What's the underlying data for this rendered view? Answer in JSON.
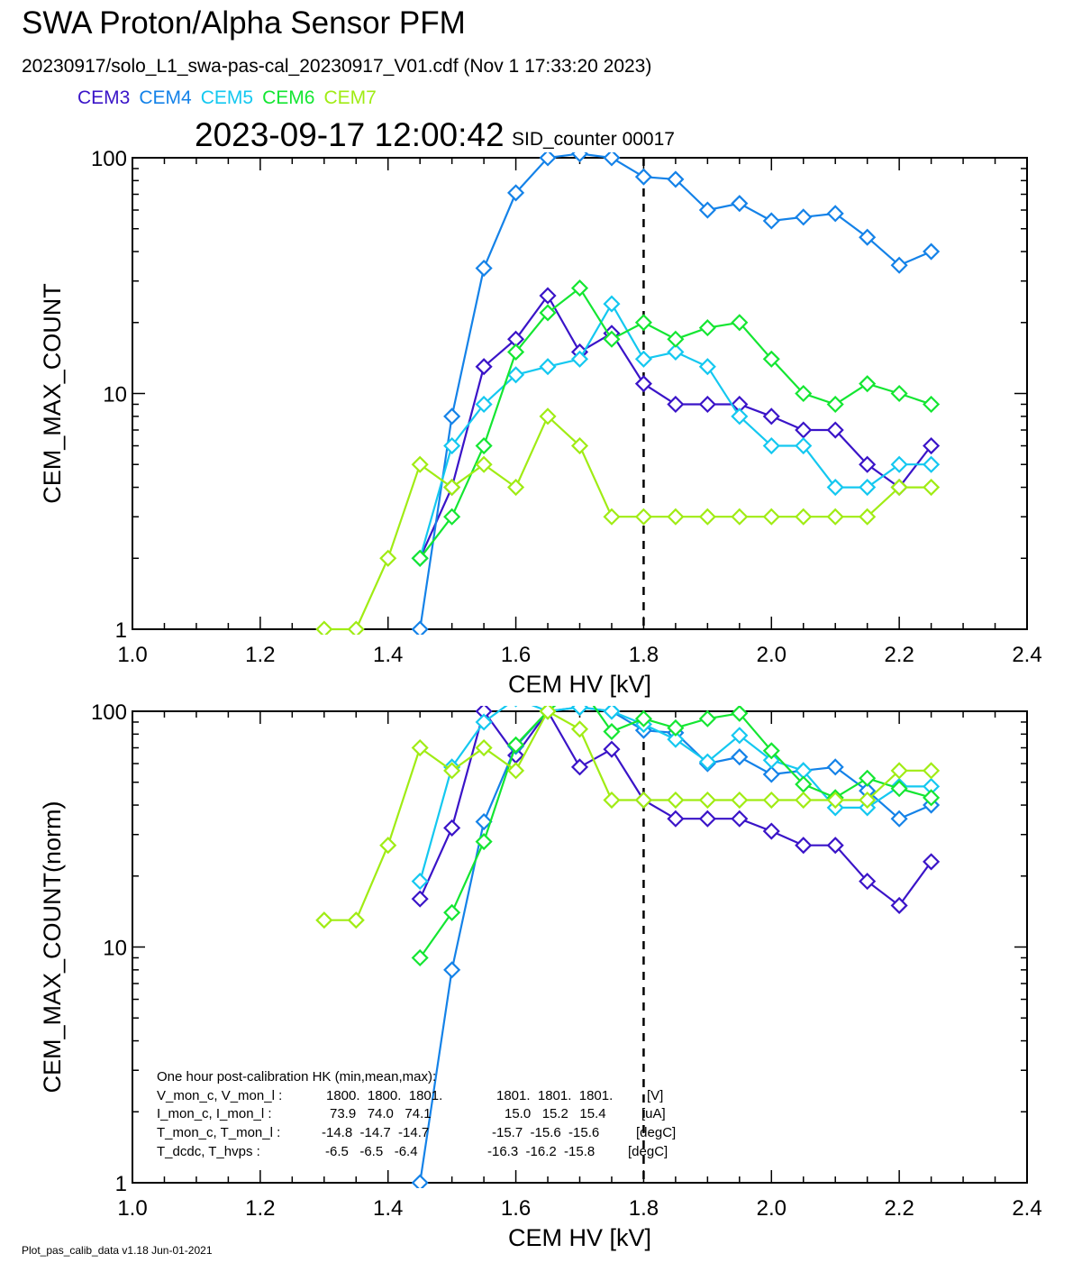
{
  "header": {
    "title": "SWA Proton/Alpha Sensor PFM",
    "subtitle": "20230917/solo_L1_swa-pas-cal_20230917_V01.cdf  (Nov  1 17:33:20 2023)",
    "timestamp": "2023-09-17 12:00:42",
    "sid_counter": "SID_counter 00017"
  },
  "legend": [
    {
      "name": "CEM3",
      "color": "#3a14c8"
    },
    {
      "name": "CEM4",
      "color": "#1482e8"
    },
    {
      "name": "CEM5",
      "color": "#14c8f0"
    },
    {
      "name": "CEM6",
      "color": "#14e632"
    },
    {
      "name": "CEM7",
      "color": "#a0ec14"
    }
  ],
  "footer": "Plot_pas_calib_data v1.18 Jun-01-2021",
  "hk_box": {
    "title": "One hour post-calibration HK (min,mean,max):",
    "rows": [
      {
        "label": "V_mon_c, V_mon_l :",
        "c": "1800.  1800.  1801.",
        "l": "1801.  1801.  1801.",
        "unit": "[V]"
      },
      {
        "label": "I_mon_c,  I_mon_l :",
        "c": "73.9   74.0   74.1",
        "l": "15.0   15.2   15.4",
        "unit": "[uA]"
      },
      {
        "label": "T_mon_c, T_mon_l :",
        "c": "-14.8  -14.7  -14.7",
        "l": "-15.7  -15.6  -15.6",
        "unit": "[degC]"
      },
      {
        "label": "T_dcdc,    T_hvps :",
        "c": "-6.5   -6.5   -6.4",
        "l": "-16.3  -16.2  -15.8",
        "unit": "[degC]"
      }
    ]
  },
  "chart_data": [
    {
      "type": "line",
      "xlabel": "CEM HV [kV]",
      "ylabel": "CEM_MAX_COUNT",
      "xlim": [
        1.0,
        2.4
      ],
      "ylim": [
        1,
        100
      ],
      "yscale": "log",
      "x_ticks": [
        "1.0",
        "1.2",
        "1.4",
        "1.6",
        "1.8",
        "2.0",
        "2.2",
        "2.4"
      ],
      "y_ticks": [
        "1",
        "10",
        "100"
      ],
      "vline_x": 1.8,
      "series": [
        {
          "name": "CEM3",
          "color": "#3a14c8",
          "x": [
            1.45,
            1.5,
            1.55,
            1.6,
            1.65,
            1.7,
            1.75,
            1.8,
            1.85,
            1.9,
            1.95,
            2.0,
            2.05,
            2.1,
            2.15,
            2.2,
            2.25
          ],
          "y": [
            2,
            4,
            13,
            17,
            26,
            15,
            18,
            11,
            9,
            9,
            9,
            8,
            7,
            7,
            5,
            4,
            6
          ]
        },
        {
          "name": "CEM4",
          "color": "#1482e8",
          "x": [
            1.45,
            1.5,
            1.55,
            1.6,
            1.65,
            1.7,
            1.75,
            1.8,
            1.85,
            1.9,
            1.95,
            2.0,
            2.05,
            2.1,
            2.15,
            2.2,
            2.25
          ],
          "y": [
            1,
            8,
            34,
            71,
            100,
            104,
            100,
            83,
            81,
            60,
            64,
            54,
            56,
            58,
            46,
            35,
            40
          ]
        },
        {
          "name": "CEM5",
          "color": "#14c8f0",
          "x": [
            1.45,
            1.5,
            1.55,
            1.6,
            1.65,
            1.7,
            1.75,
            1.8,
            1.85,
            1.9,
            1.95,
            2.0,
            2.05,
            2.1,
            2.15,
            2.2,
            2.25
          ],
          "y": [
            2,
            6,
            9,
            12,
            13,
            14,
            24,
            14,
            15,
            13,
            8,
            6,
            6,
            4,
            4,
            5,
            5
          ]
        },
        {
          "name": "CEM6",
          "color": "#14e632",
          "x": [
            1.45,
            1.5,
            1.55,
            1.6,
            1.65,
            1.7,
            1.75,
            1.8,
            1.85,
            1.9,
            1.95,
            2.0,
            2.05,
            2.1,
            2.15,
            2.2,
            2.25
          ],
          "y": [
            2,
            3,
            6,
            15,
            22,
            28,
            17,
            20,
            17,
            19,
            20,
            14,
            10,
            9,
            11,
            10,
            9
          ]
        },
        {
          "name": "CEM7",
          "color": "#a0ec14",
          "x": [
            1.3,
            1.35,
            1.4,
            1.45,
            1.5,
            1.55,
            1.6,
            1.65,
            1.7,
            1.75,
            1.8,
            1.85,
            1.9,
            1.95,
            2.0,
            2.05,
            2.1,
            2.15,
            2.2,
            2.25
          ],
          "y": [
            1,
            1,
            2,
            5,
            4,
            5,
            4,
            8,
            6,
            3,
            3,
            3,
            3,
            3,
            3,
            3,
            3,
            3,
            4,
            4
          ]
        }
      ]
    },
    {
      "type": "line",
      "xlabel": "CEM HV [kV]",
      "ylabel": "CEM_MAX_COUNT(norm)",
      "xlim": [
        1.0,
        2.4
      ],
      "ylim": [
        1,
        100
      ],
      "yscale": "log",
      "x_ticks": [
        "1.0",
        "1.2",
        "1.4",
        "1.6",
        "1.8",
        "2.0",
        "2.2",
        "2.4"
      ],
      "y_ticks": [
        "1",
        "10",
        "100"
      ],
      "vline_x": 1.8,
      "series": [
        {
          "name": "CEM3",
          "color": "#3a14c8",
          "x": [
            1.45,
            1.5,
            1.55,
            1.6,
            1.65,
            1.7,
            1.75,
            1.8,
            1.85,
            1.9,
            1.95,
            2.0,
            2.05,
            2.1,
            2.15,
            2.2,
            2.25
          ],
          "y": [
            16,
            32,
            100,
            65,
            100,
            58,
            69,
            42,
            35,
            35,
            35,
            31,
            27,
            27,
            19,
            15,
            23
          ]
        },
        {
          "name": "CEM4",
          "color": "#1482e8",
          "x": [
            1.45,
            1.5,
            1.55,
            1.6,
            1.65,
            1.7,
            1.75,
            1.8,
            1.85,
            1.9,
            1.95,
            2.0,
            2.05,
            2.1,
            2.15,
            2.2,
            2.25
          ],
          "y": [
            1,
            8,
            34,
            71,
            100,
            104,
            100,
            83,
            81,
            60,
            64,
            54,
            56,
            58,
            46,
            35,
            40
          ]
        },
        {
          "name": "CEM5",
          "color": "#14c8f0",
          "x": [
            1.45,
            1.5,
            1.55,
            1.6,
            1.65,
            1.7,
            1.75,
            1.8,
            1.85,
            1.9,
            1.95,
            2.0,
            2.05,
            2.1,
            2.15,
            2.2,
            2.25
          ],
          "y": [
            19,
            58,
            90,
            113,
            100,
            104,
            100,
            88,
            76,
            61,
            79,
            62,
            56,
            39,
            39,
            48,
            48
          ]
        },
        {
          "name": "CEM6",
          "color": "#14e632",
          "x": [
            1.45,
            1.5,
            1.55,
            1.6,
            1.65,
            1.7,
            1.75,
            1.8,
            1.85,
            1.9,
            1.95,
            2.0,
            2.05,
            2.1,
            2.15,
            2.2,
            2.25
          ],
          "y": [
            9,
            14,
            28,
            72,
            100,
            128,
            82,
            93,
            85,
            93,
            98,
            68,
            49,
            43,
            52,
            47,
            43
          ]
        },
        {
          "name": "CEM7",
          "color": "#a0ec14",
          "x": [
            1.3,
            1.35,
            1.4,
            1.45,
            1.5,
            1.55,
            1.6,
            1.65,
            1.7,
            1.75,
            1.8,
            1.85,
            1.9,
            1.95,
            2.0,
            2.05,
            2.1,
            2.15,
            2.2,
            2.25
          ],
          "y": [
            13,
            13,
            27,
            70,
            56,
            70,
            56,
            100,
            84,
            42,
            42,
            42,
            42,
            42,
            42,
            42,
            42,
            42,
            56,
            56
          ]
        }
      ]
    }
  ]
}
